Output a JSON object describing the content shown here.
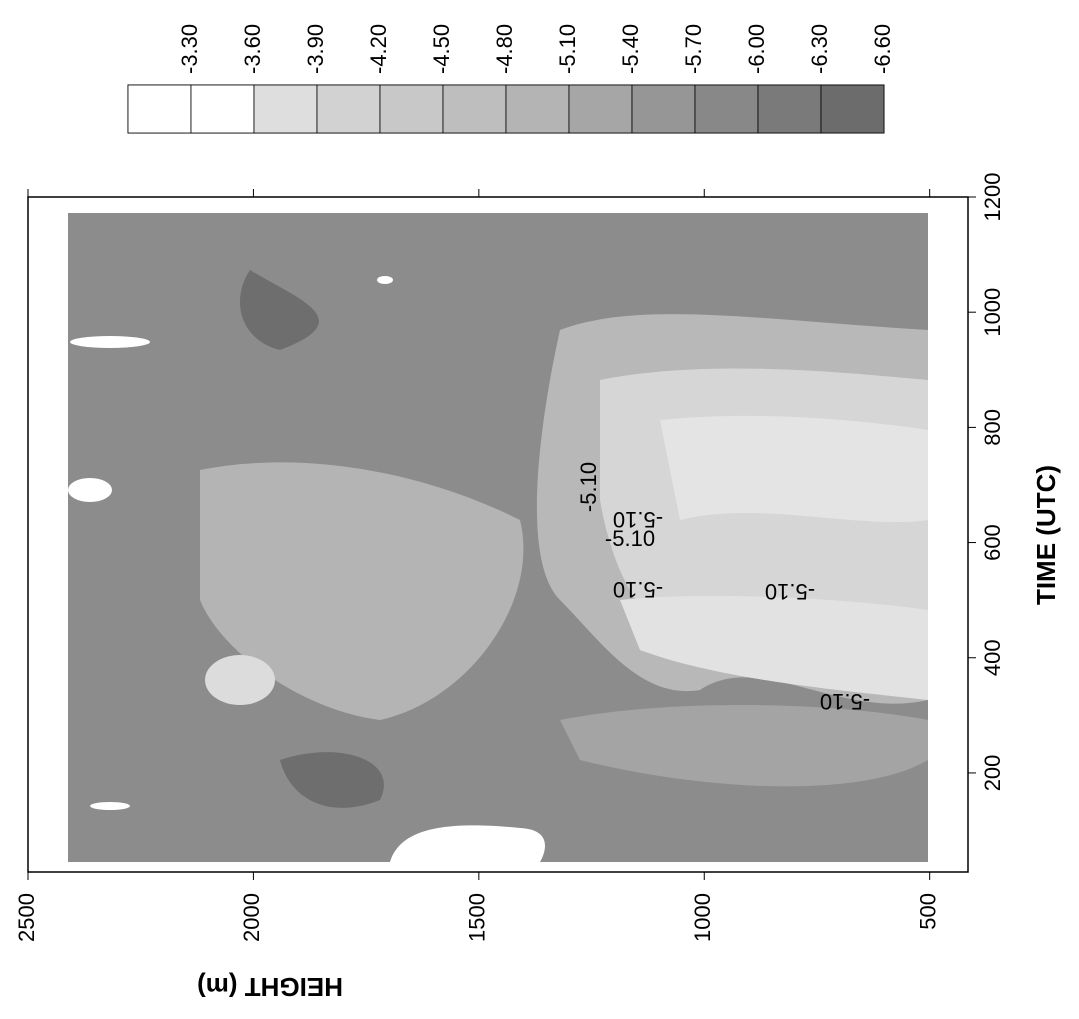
{
  "chart_data": {
    "type": "contour",
    "x_label": "HEIGHT (m)",
    "y_label": "TIME (UTC)",
    "xlim": [
      2500,
      415
    ],
    "xticks": [
      2500,
      2000,
      1500,
      1000,
      500
    ],
    "ylim": [
      28,
      1200
    ],
    "yticks": [
      1200,
      1000,
      800,
      600,
      400,
      200
    ],
    "colorbar": {
      "levels": [
        "-3.30",
        "-3.60",
        "-3.90",
        "-4.20",
        "-4.50",
        "-4.80",
        "-5.10",
        "-5.40",
        "-5.70",
        "-6.00",
        "-6.30",
        "-6.60"
      ],
      "colors": [
        "#ffffff",
        "#ffffff",
        "#dedede",
        "#d2d2d2",
        "#c8c8c8",
        "#bebebe",
        "#b4b4b4",
        "#a6a6a6",
        "#969696",
        "#888888",
        "#7a7a7a",
        "#6c6c6c"
      ]
    },
    "contour_labels": [
      "-5.10",
      "-5.10",
      "-5.10",
      "-5.10",
      "-5.10",
      "-5.10"
    ]
  }
}
